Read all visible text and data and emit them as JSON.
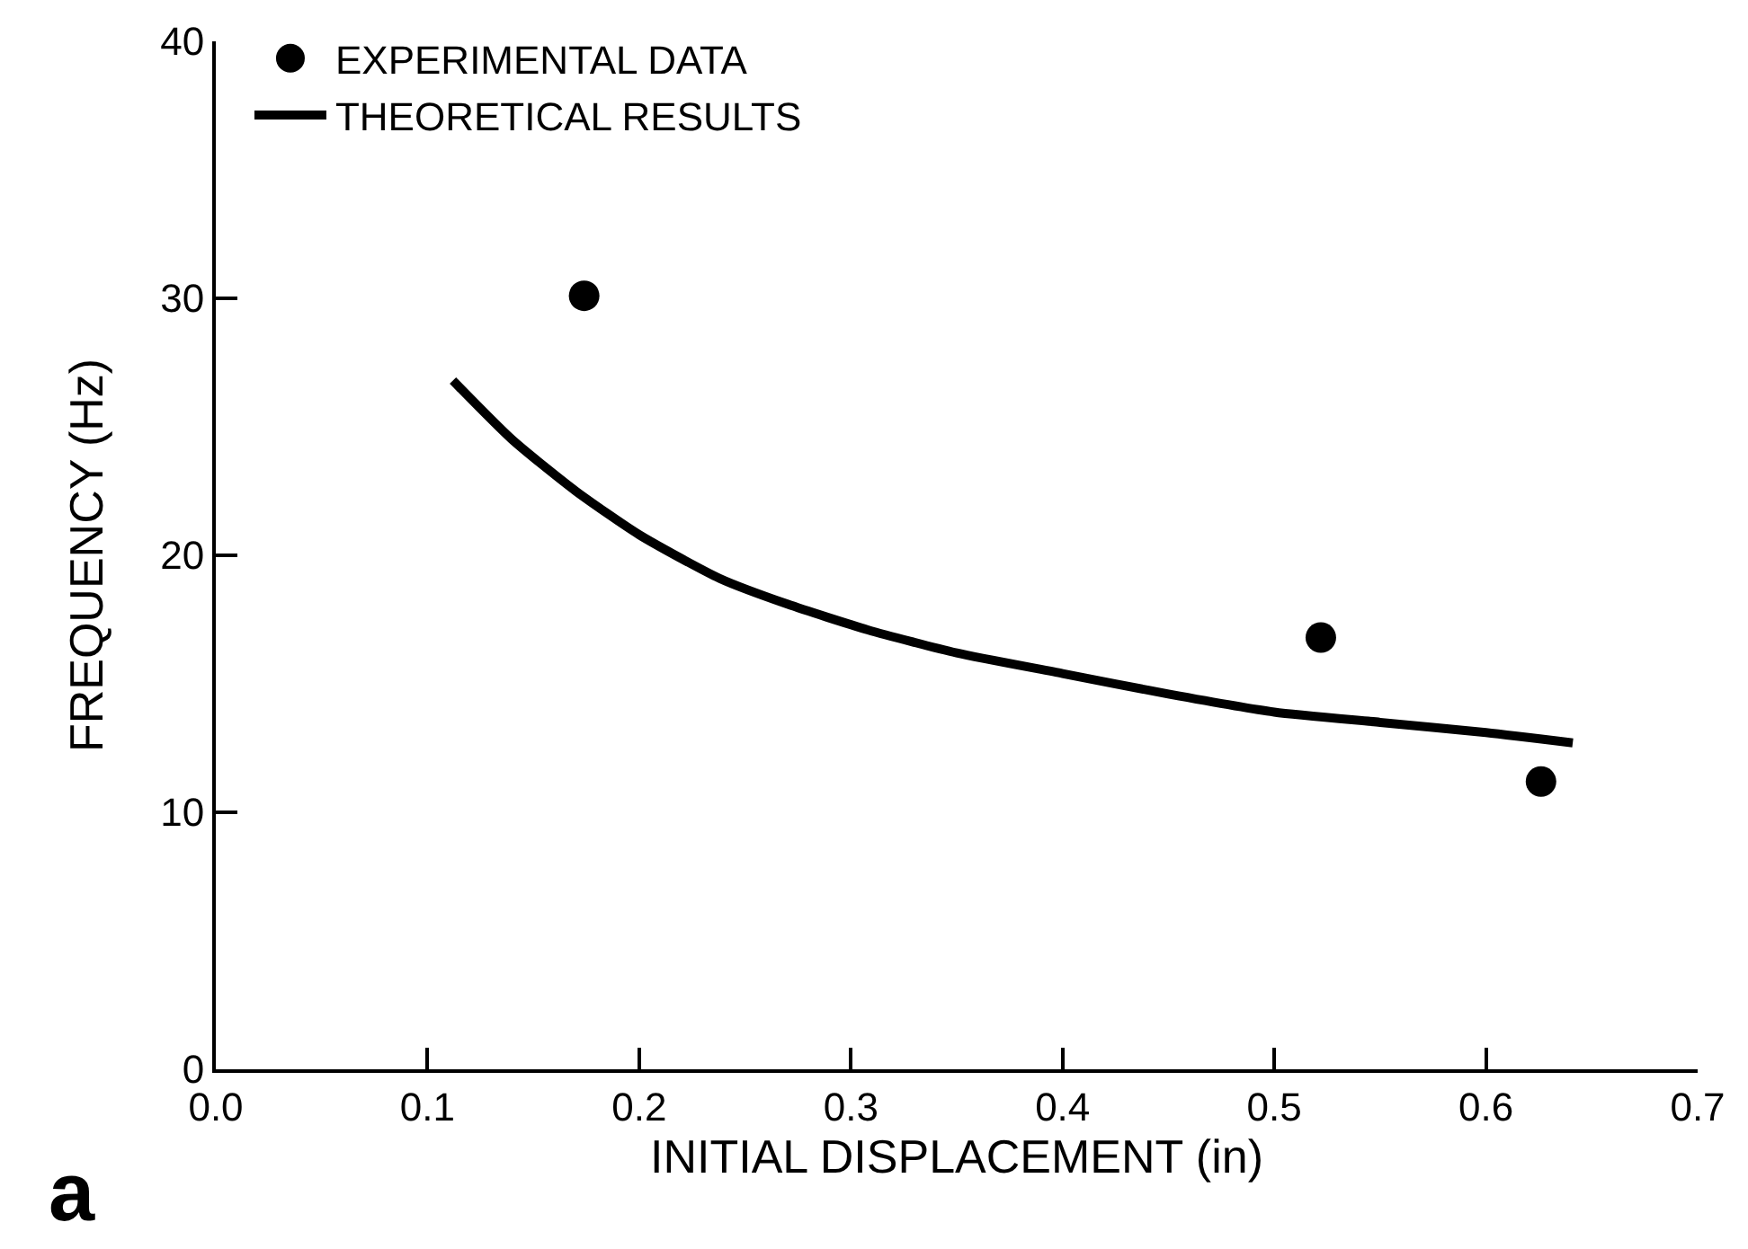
{
  "chart_data": {
    "type": "scatter",
    "xlabel": "INITIAL DISPLACEMENT (in)",
    "ylabel": "FREQUENCY (Hz)",
    "xlim": [
      0,
      0.7
    ],
    "ylim": [
      0,
      40
    ],
    "xticks": [
      {
        "value": 0,
        "label": "0.0"
      },
      0.1,
      0.2,
      0.3,
      0.4,
      0.5,
      0.6,
      0.7
    ],
    "yticks": [
      0,
      10,
      20,
      30,
      40
    ],
    "grid": false,
    "legend": "top left",
    "line_style": "solid",
    "series": [
      {
        "name": "EXPERIMENTAL DATA",
        "marker": "circle",
        "color": "#000000",
        "x": [
          0.174,
          0.522,
          0.626
        ],
        "values": [
          30.1,
          16.8,
          11.2
        ]
      },
      {
        "name": "THEORETICAL RESULTS",
        "type": "line",
        "marker": "none",
        "color": "#000000",
        "x": [
          0.112,
          0.14,
          0.17,
          0.2,
          0.238,
          0.27,
          0.308,
          0.35,
          0.4,
          0.45,
          0.5,
          0.55,
          0.6,
          0.641
        ],
        "values": [
          26.8,
          24.5,
          22.5,
          20.8,
          19.1,
          18.1,
          17.1,
          16.2,
          15.4,
          14.6,
          13.9,
          13.5,
          13.1,
          12.7
        ]
      }
    ],
    "annotations": [
      "a"
    ]
  }
}
